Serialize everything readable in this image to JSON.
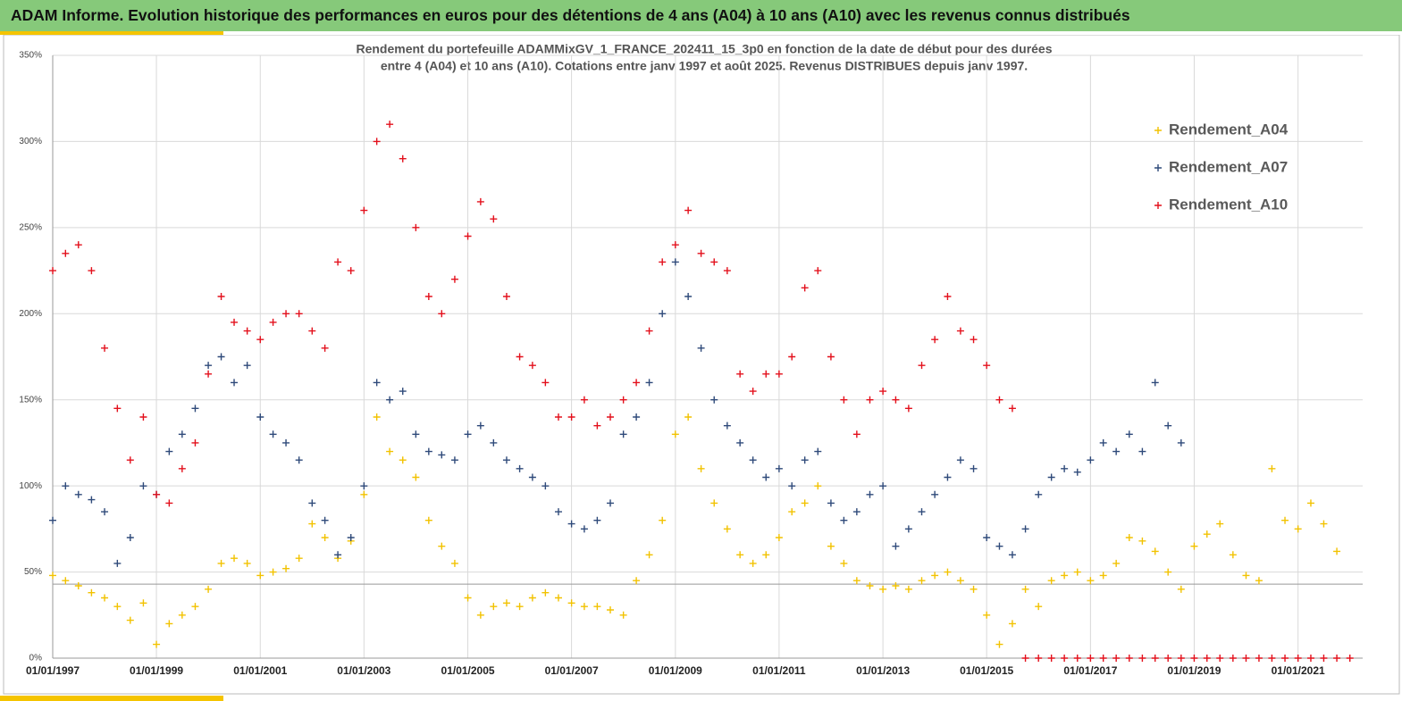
{
  "chart_data": {
    "type": "scatter",
    "title": "ADAM Informe. Evolution historique des performances en euros pour des détentions de 4 ans (A04) à 10 ans (A10) avec les revenus connus distribués",
    "subtitle": [
      "Rendement du portefeuille ADAMMixGV_1_FRANCE_202411_15_3p0  en fonction de la date de début pour des durées",
      "entre 4 (A04) et 10 ans (A10). Cotations  entre janv 1997 et août 2025. Revenus DISTRIBUES depuis janv 1997."
    ],
    "x": [
      "01/01/1997",
      "01/04/1997",
      "01/07/1997",
      "01/10/1997",
      "01/01/1998",
      "01/04/1998",
      "01/07/1998",
      "01/10/1998",
      "01/01/1999",
      "01/04/1999",
      "01/07/1999",
      "01/10/1999",
      "01/01/2000",
      "01/04/2000",
      "01/07/2000",
      "01/10/2000",
      "01/01/2001",
      "01/04/2001",
      "01/07/2001",
      "01/10/2001",
      "01/01/2002",
      "01/04/2002",
      "01/07/2002",
      "01/10/2002",
      "01/01/2003",
      "01/04/2003",
      "01/07/2003",
      "01/10/2003",
      "01/01/2004",
      "01/04/2004",
      "01/07/2004",
      "01/10/2004",
      "01/01/2005",
      "01/04/2005",
      "01/07/2005",
      "01/10/2005",
      "01/01/2006",
      "01/04/2006",
      "01/07/2006",
      "01/10/2006",
      "01/01/2007",
      "01/04/2007",
      "01/07/2007",
      "01/10/2007",
      "01/01/2008",
      "01/04/2008",
      "01/07/2008",
      "01/10/2008",
      "01/01/2009",
      "01/04/2009",
      "01/07/2009",
      "01/10/2009",
      "01/01/2010",
      "01/04/2010",
      "01/07/2010",
      "01/10/2010",
      "01/01/2011",
      "01/04/2011",
      "01/07/2011",
      "01/10/2011",
      "01/01/2012",
      "01/04/2012",
      "01/07/2012",
      "01/10/2012",
      "01/01/2013",
      "01/04/2013",
      "01/07/2013",
      "01/10/2013",
      "01/01/2014",
      "01/04/2014",
      "01/07/2014",
      "01/10/2014",
      "01/01/2015",
      "01/04/2015",
      "01/07/2015",
      "01/10/2015",
      "01/01/2016",
      "01/04/2016",
      "01/07/2016",
      "01/10/2016",
      "01/01/2017",
      "01/04/2017",
      "01/07/2017",
      "01/10/2017",
      "01/01/2018",
      "01/04/2018",
      "01/07/2018",
      "01/10/2018",
      "01/01/2019",
      "01/04/2019",
      "01/07/2019",
      "01/10/2019",
      "01/01/2020",
      "01/04/2020",
      "01/07/2020",
      "01/10/2020",
      "01/01/2021",
      "01/04/2021",
      "01/07/2021",
      "01/10/2021",
      "01/01/2022"
    ],
    "series": [
      {
        "name": "Rendement_A04",
        "color": "#f2c200",
        "values": [
          48,
          45,
          42,
          38,
          35,
          30,
          22,
          32,
          8,
          20,
          25,
          30,
          40,
          55,
          58,
          55,
          48,
          50,
          52,
          58,
          78,
          70,
          58,
          68,
          95,
          140,
          120,
          115,
          105,
          80,
          65,
          55,
          35,
          25,
          30,
          32,
          30,
          35,
          38,
          35,
          32,
          30,
          30,
          28,
          25,
          45,
          60,
          80,
          130,
          140,
          110,
          90,
          75,
          60,
          55,
          60,
          70,
          85,
          90,
          100,
          65,
          55,
          45,
          42,
          40,
          42,
          40,
          45,
          48,
          50,
          45,
          40,
          25,
          8,
          20,
          40,
          30,
          45,
          48,
          50,
          45,
          48,
          55,
          70,
          68,
          62,
          50,
          40,
          65,
          72,
          78,
          60,
          48,
          45,
          110,
          80,
          75,
          90,
          78,
          62,
          null
        ]
      },
      {
        "name": "Rendement_A07",
        "color": "#2f4a7a",
        "values": [
          80,
          100,
          95,
          92,
          85,
          55,
          70,
          100,
          95,
          120,
          130,
          145,
          170,
          175,
          160,
          170,
          140,
          130,
          125,
          115,
          90,
          80,
          60,
          70,
          100,
          160,
          150,
          155,
          130,
          120,
          118,
          115,
          130,
          135,
          125,
          115,
          110,
          105,
          100,
          85,
          78,
          75,
          80,
          90,
          130,
          140,
          160,
          200,
          230,
          210,
          180,
          150,
          135,
          125,
          115,
          105,
          110,
          100,
          115,
          120,
          90,
          80,
          85,
          95,
          100,
          65,
          75,
          85,
          95,
          105,
          115,
          110,
          70,
          65,
          60,
          75,
          95,
          105,
          110,
          108,
          115,
          125,
          120,
          130,
          120,
          160,
          135,
          125,
          null,
          null,
          null,
          null,
          null,
          null,
          null,
          null,
          null,
          null,
          null,
          null,
          null
        ]
      },
      {
        "name": "Rendement_A10",
        "color": "#e3101c",
        "values": [
          225,
          235,
          240,
          225,
          180,
          145,
          115,
          140,
          95,
          90,
          110,
          125,
          165,
          210,
          195,
          190,
          185,
          195,
          200,
          200,
          190,
          180,
          230,
          225,
          260,
          300,
          310,
          290,
          250,
          210,
          200,
          220,
          245,
          265,
          255,
          210,
          175,
          170,
          160,
          140,
          140,
          150,
          135,
          140,
          150,
          160,
          190,
          230,
          240,
          260,
          235,
          230,
          225,
          165,
          155,
          165,
          165,
          175,
          215,
          225,
          175,
          150,
          130,
          150,
          155,
          150,
          145,
          170,
          185,
          210,
          190,
          185,
          170,
          150,
          145,
          0,
          0,
          0,
          0,
          0,
          0,
          0,
          0,
          0,
          0,
          0,
          0,
          0,
          0,
          0,
          0,
          0,
          0,
          0,
          0,
          0,
          0,
          0,
          0,
          0,
          0
        ]
      }
    ],
    "xlim": [
      "01/01/1997",
      "01/04/2022"
    ],
    "xticks": [
      "01/01/1997",
      "01/01/1999",
      "01/01/2001",
      "01/01/2003",
      "01/01/2005",
      "01/01/2007",
      "01/01/2009",
      "01/01/2011",
      "01/01/2013",
      "01/01/2015",
      "01/01/2017",
      "01/01/2019",
      "01/01/2021"
    ],
    "ylim": [
      0,
      350
    ],
    "yticks": [
      {
        "value": 0,
        "label": "0%"
      },
      {
        "value": 50,
        "label": "50%"
      },
      {
        "value": 100,
        "label": "100%"
      },
      {
        "value": 150,
        "label": "150%"
      },
      {
        "value": 200,
        "label": "200%"
      },
      {
        "value": 250,
        "label": "250%"
      },
      {
        "value": 300,
        "label": "300%"
      },
      {
        "value": 350,
        "label": "350%"
      }
    ],
    "hline": 43,
    "grid": true,
    "legend": "top-right"
  }
}
